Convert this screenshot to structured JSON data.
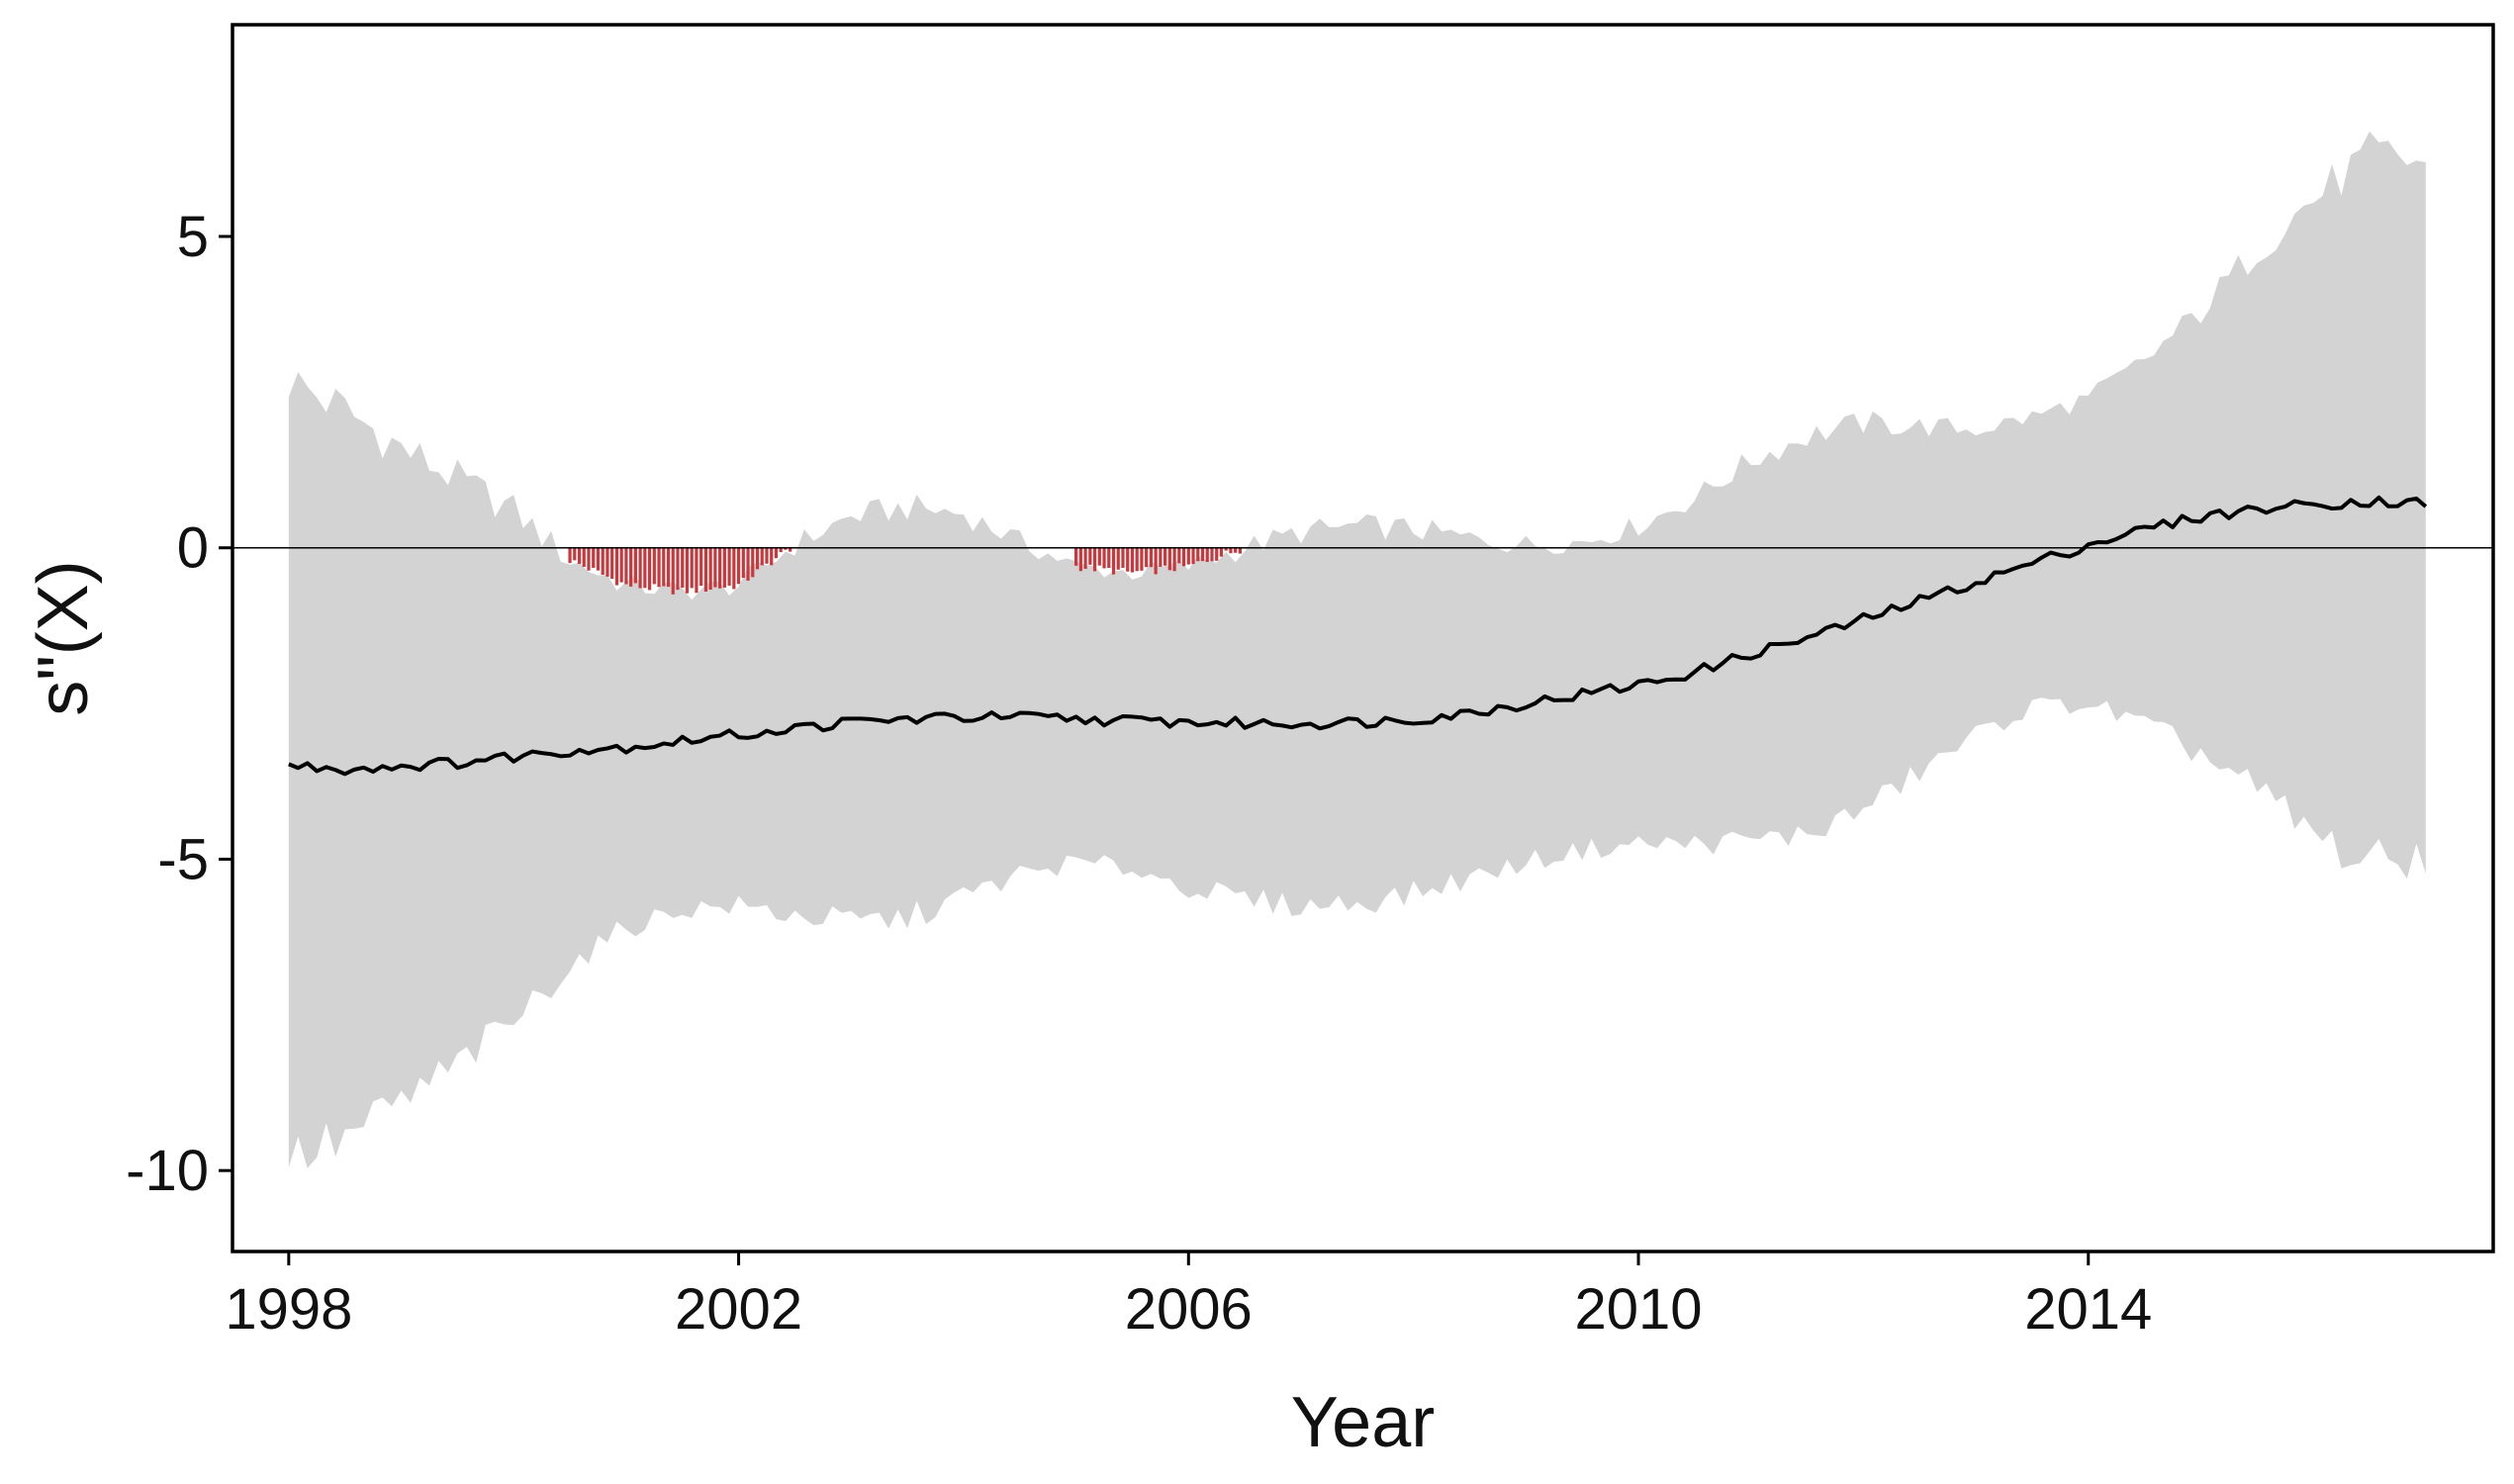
{
  "chart_data": {
    "type": "line",
    "title": "",
    "xlabel": "Year",
    "ylabel": "s\"(X)",
    "xlim": [
      1997.5,
      2017.6
    ],
    "ylim": [
      -11.3,
      8.4
    ],
    "x_ticks": [
      1998,
      2002,
      2006,
      2010,
      2014
    ],
    "y_ticks": [
      5,
      0,
      -5,
      -10
    ],
    "y_tick_labels": [
      "5",
      "0",
      "-5",
      "-10"
    ],
    "reference_line": 0,
    "grid": false,
    "legend": "none",
    "colors": {
      "band": "#d3d3d3",
      "line": "#000000",
      "highlight": "#c8383c",
      "zero_line": "#000000",
      "frame": "#000000"
    },
    "series": [
      {
        "role": "estimate",
        "x": [
          1998.0,
          1998.5,
          1999.0,
          1999.5,
          2000.0,
          2000.5,
          2001.0,
          2001.5,
          2002.0,
          2002.5,
          2003.0,
          2003.5,
          2004.0,
          2004.5,
          2005.0,
          2005.5,
          2006.0,
          2006.5,
          2007.0,
          2007.5,
          2008.0,
          2008.5,
          2009.0,
          2009.5,
          2010.0,
          2010.5,
          2011.0,
          2011.5,
          2012.0,
          2012.5,
          2013.0,
          2013.5,
          2014.0,
          2014.5,
          2015.0,
          2015.5,
          2016.0,
          2016.5,
          2017.0
        ],
        "y": [
          -3.5,
          -3.55,
          -3.5,
          -3.45,
          -3.35,
          -3.25,
          -3.2,
          -3.1,
          -3.0,
          -2.9,
          -2.8,
          -2.75,
          -2.72,
          -2.72,
          -2.75,
          -2.78,
          -2.8,
          -2.82,
          -2.82,
          -2.8,
          -2.75,
          -2.65,
          -2.5,
          -2.35,
          -2.2,
          -2.0,
          -1.7,
          -1.45,
          -1.15,
          -0.85,
          -0.55,
          -0.25,
          0.05,
          0.3,
          0.5,
          0.62,
          0.7,
          0.75,
          0.72
        ]
      },
      {
        "role": "upper_bound",
        "x": [
          1998.0,
          1998.5,
          1999.0,
          1999.5,
          2000.0,
          2000.5,
          2001.0,
          2001.5,
          2002.0,
          2002.5,
          2003.0,
          2003.5,
          2004.0,
          2004.5,
          2005.0,
          2005.5,
          2006.0,
          2006.5,
          2007.0,
          2007.5,
          2008.0,
          2008.5,
          2009.0,
          2009.5,
          2010.0,
          2010.5,
          2011.0,
          2011.5,
          2012.0,
          2012.5,
          2013.0,
          2013.5,
          2014.0,
          2014.5,
          2015.0,
          2015.5,
          2016.0,
          2016.5,
          2017.0
        ],
        "y": [
          2.7,
          2.2,
          1.6,
          1.1,
          0.6,
          -0.2,
          -0.6,
          -0.7,
          -0.6,
          0.05,
          0.5,
          0.65,
          0.55,
          0.1,
          -0.3,
          -0.4,
          -0.3,
          0.0,
          0.25,
          0.35,
          0.3,
          0.15,
          0.05,
          0.1,
          0.35,
          0.8,
          1.4,
          1.8,
          2.0,
          1.95,
          1.9,
          2.1,
          2.4,
          3.0,
          3.8,
          4.8,
          5.6,
          6.3,
          6.2
        ]
      },
      {
        "role": "lower_bound",
        "x": [
          1998.0,
          1998.5,
          1999.0,
          1999.5,
          2000.0,
          2000.5,
          2001.0,
          2001.5,
          2002.0,
          2002.5,
          2003.0,
          2003.5,
          2004.0,
          2004.5,
          2005.0,
          2005.5,
          2006.0,
          2006.5,
          2007.0,
          2007.5,
          2008.0,
          2008.5,
          2009.0,
          2009.5,
          2010.0,
          2010.5,
          2011.0,
          2011.5,
          2012.0,
          2012.5,
          2013.0,
          2013.5,
          2014.0,
          2014.5,
          2015.0,
          2015.5,
          2016.0,
          2016.5,
          2017.0
        ],
        "y": [
          -9.8,
          -9.5,
          -8.9,
          -8.3,
          -7.6,
          -6.7,
          -6.1,
          -5.8,
          -5.75,
          -5.9,
          -6.0,
          -5.95,
          -5.6,
          -5.25,
          -5.05,
          -5.15,
          -5.45,
          -5.65,
          -5.75,
          -5.7,
          -5.55,
          -5.3,
          -5.05,
          -4.85,
          -4.75,
          -4.75,
          -4.7,
          -4.6,
          -4.2,
          -3.6,
          -3.0,
          -2.55,
          -2.5,
          -2.85,
          -3.3,
          -3.9,
          -4.6,
          -5.1,
          -4.9
        ]
      }
    ],
    "highlight_regions": [
      {
        "x_start": 2000.5,
        "x_end": 2002.5
      },
      {
        "x_start": 2005.0,
        "x_end": 2006.7
      }
    ]
  }
}
